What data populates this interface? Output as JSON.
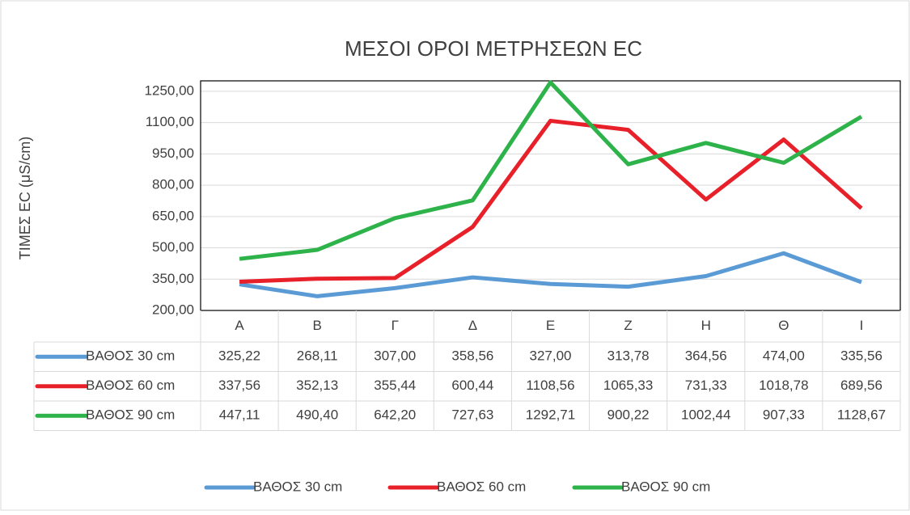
{
  "chart_data": {
    "type": "line",
    "title": "ΜΕΣΟΙ ΟΡΟΙ ΜΕΤΡΗΣΕΩΝ EC",
    "y_label": "ΤΙΜΕΣ EC (μS/cm)",
    "categories": [
      "Α",
      "Β",
      "Γ",
      "Δ",
      "Ε",
      "Ζ",
      "Η",
      "Θ",
      "Ι"
    ],
    "series": [
      {
        "name": "ΒΑΘΟΣ 30 cm",
        "color": "#5b9bd5",
        "values": [
          325.22,
          268.11,
          307.0,
          358.56,
          327.0,
          313.78,
          364.56,
          474.0,
          335.56
        ],
        "value_labels": [
          "325,22",
          "268,11",
          "307,00",
          "358,56",
          "327,00",
          "313,78",
          "364,56",
          "474,00",
          "335,56"
        ]
      },
      {
        "name": "ΒΑΘΟΣ 60 cm",
        "color": "#e8202a",
        "values": [
          337.56,
          352.13,
          355.44,
          600.44,
          1108.56,
          1065.33,
          731.33,
          1018.78,
          689.56
        ],
        "value_labels": [
          "337,56",
          "352,13",
          "355,44",
          "600,44",
          "1108,56",
          "1065,33",
          "731,33",
          "1018,78",
          "689,56"
        ]
      },
      {
        "name": "ΒΑΘΟΣ 90 cm",
        "color": "#2db34a",
        "values": [
          447.11,
          490.4,
          642.2,
          727.63,
          1292.71,
          900.22,
          1002.44,
          907.33,
          1128.67
        ],
        "value_labels": [
          "447,11",
          "490,40",
          "642,20",
          "727,63",
          "1292,71",
          "900,22",
          "1002,44",
          "907,33",
          "1128,67"
        ]
      }
    ],
    "ylim": [
      200,
      1300
    ],
    "yticks": [
      {
        "value": 200,
        "label": "200,00"
      },
      {
        "value": 350,
        "label": "350,00"
      },
      {
        "value": 500,
        "label": "500,00"
      },
      {
        "value": 650,
        "label": "650,00"
      },
      {
        "value": 800,
        "label": "800,00"
      },
      {
        "value": 950,
        "label": "950,00"
      },
      {
        "value": 1100,
        "label": "1100,00"
      },
      {
        "value": 1250,
        "label": "1250,00"
      }
    ],
    "grid": true,
    "legend": "bottom"
  }
}
